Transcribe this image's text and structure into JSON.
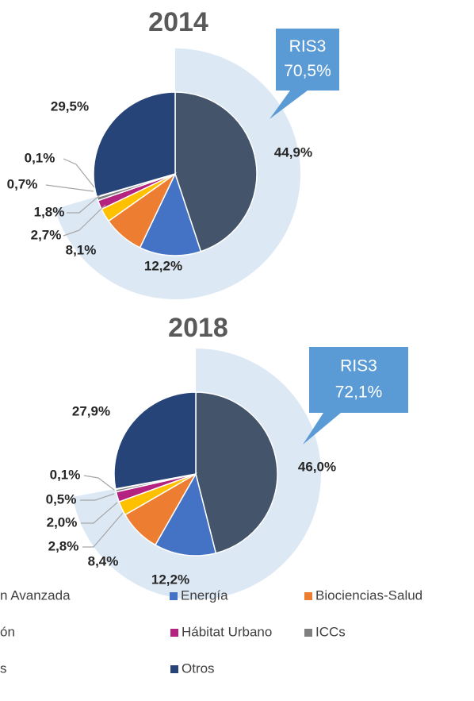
{
  "chart_data": [
    {
      "type": "pie",
      "title": "2014",
      "values": [
        44.9,
        12.2,
        8.1,
        2.7,
        1.8,
        0.7,
        0.1,
        29.5
      ],
      "value_labels": [
        "44,9%",
        "12,2%",
        "8,1%",
        "2,7%",
        "1,8%",
        "0,7%",
        "0,1%",
        "29,5%"
      ],
      "callout": [
        "RIS3",
        "70,5%"
      ]
    },
    {
      "type": "pie",
      "title": "2018",
      "values": [
        46.0,
        12.2,
        8.4,
        2.8,
        2.0,
        0.5,
        0.1,
        27.9
      ],
      "value_labels": [
        "46,0%",
        "12,2%",
        "8,4%",
        "2,8%",
        "2,0%",
        "0,5%",
        "0,1%",
        "27,9%"
      ],
      "callout": [
        "RIS3",
        "72,1%"
      ]
    }
  ],
  "legend": {
    "categories": [
      "n Avanzada",
      "Energía",
      "Biociencias-Salud",
      "ón",
      "Hábitat Urbano",
      "ICCs",
      "s",
      "Otros"
    ],
    "colors": [
      "#44546a",
      "#4472c4",
      "#ed7d31",
      "#ffc000",
      "#b4237f",
      "#7f7f7f",
      "#d9d9d9",
      "#264478"
    ]
  }
}
